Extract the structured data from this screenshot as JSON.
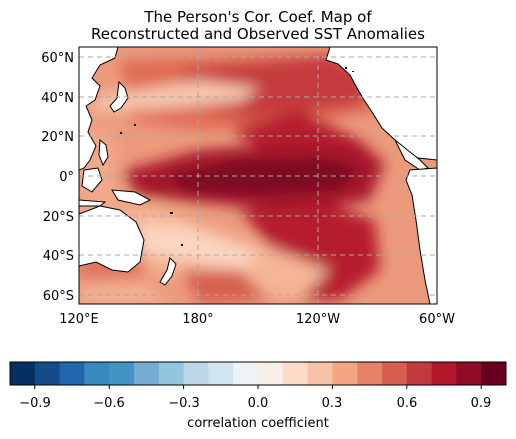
{
  "title_line1": "The Person's Cor. Coef. Map of",
  "title_line2": "Reconstructed and Observed SST Anomalies",
  "map": {
    "lat_ticks": [
      "60°N",
      "40°N",
      "20°N",
      "0°",
      "20°S",
      "40°S",
      "60°S"
    ],
    "lon_ticks": [
      "120°E",
      "180°",
      "120°W",
      "60°W"
    ],
    "extent": {
      "lon": [
        120,
        300
      ],
      "lat": [
        -65,
        65
      ]
    }
  },
  "colorbar": {
    "label": "correlation coefficient",
    "ticks": [
      "−0.9",
      "−0.6",
      "−0.3",
      "0.0",
      "0.3",
      "0.6",
      "0.9"
    ],
    "range": [
      -1.0,
      1.0
    ],
    "colors": [
      "#053061",
      "#134c88",
      "#2166ac",
      "#3a88c0",
      "#4393c3",
      "#74add1",
      "#92c5de",
      "#bdd7e7",
      "#d1e5f0",
      "#eef3f6",
      "#f8eee8",
      "#fddbc7",
      "#f7c2a8",
      "#f4a582",
      "#e58268",
      "#d6604d",
      "#c03a3e",
      "#b2182b",
      "#8e0c25",
      "#67001f"
    ]
  }
}
